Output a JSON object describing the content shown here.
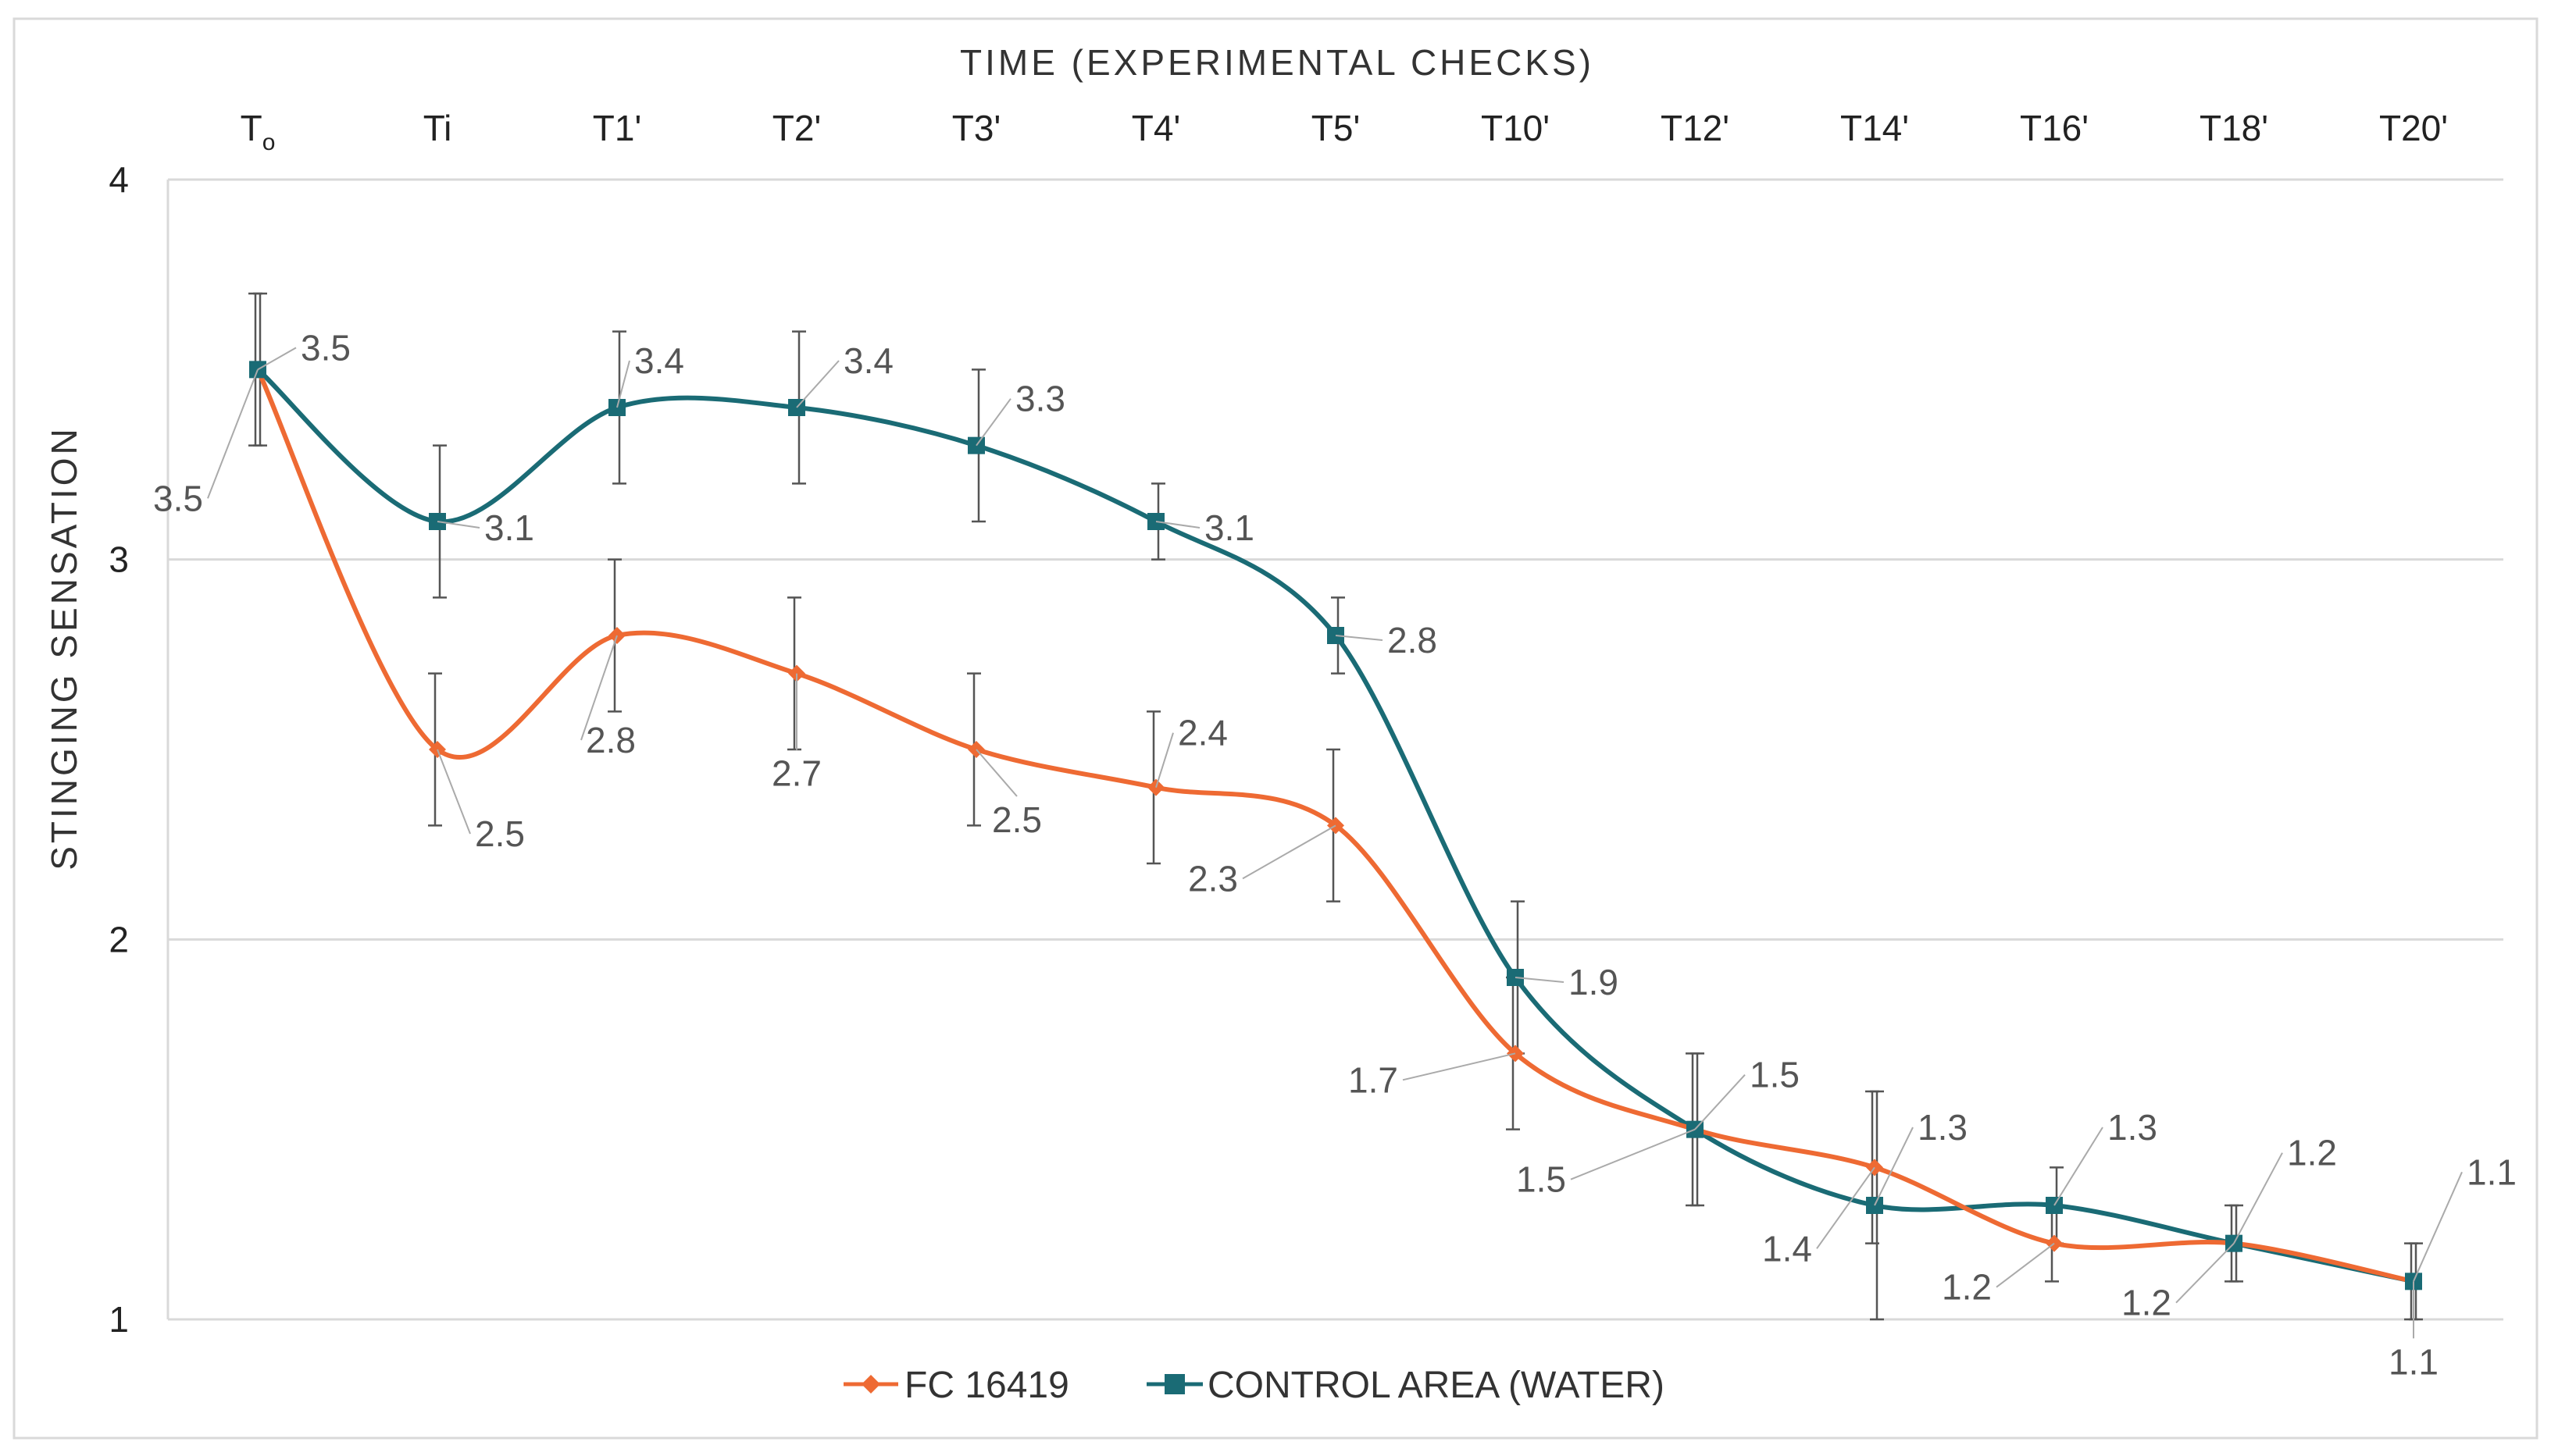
{
  "chart_data": {
    "type": "line",
    "xlabel": "TIME (EXPERIMENTAL CHECKS)",
    "ylabel": "STINGING SENSATION",
    "categories": [
      "To",
      "Ti",
      "T1'",
      "T2'",
      "T3'",
      "T4'",
      "T5'",
      "T10'",
      "T12'",
      "T14'",
      "T16'",
      "T18'",
      "T20'"
    ],
    "ylim": [
      1,
      4
    ],
    "yticks": [
      "1",
      "2",
      "3",
      "4"
    ],
    "grid": true,
    "legend_position": "bottom",
    "series": [
      {
        "name": "FC 16419",
        "color": "#ee6a33",
        "marker": "diamond",
        "values": [
          3.5,
          2.5,
          2.8,
          2.7,
          2.5,
          2.4,
          2.3,
          1.7,
          1.5,
          1.4,
          1.2,
          1.2,
          1.1
        ],
        "labels": [
          "3.5",
          "2.5",
          "2.8",
          "2.7",
          "2.5",
          "2.4",
          "2.3",
          "1.7",
          "1.5",
          "1.4",
          "1.2",
          "1.2",
          "1.1"
        ],
        "error": [
          0.2,
          0.2,
          0.2,
          0.2,
          0.2,
          0.2,
          0.2,
          0.2,
          0.2,
          0.2,
          0.1,
          0.1,
          0.1
        ]
      },
      {
        "name": "CONTROL AREA (WATER)",
        "color": "#1a6b75",
        "marker": "square",
        "values": [
          3.5,
          3.1,
          3.4,
          3.4,
          3.3,
          3.1,
          2.8,
          1.9,
          1.5,
          1.3,
          1.3,
          1.2,
          1.1
        ],
        "labels": [
          "3.5",
          "3.1",
          "3.4",
          "3.4",
          "3.3",
          "3.1",
          "2.8",
          "1.9",
          "1.5",
          "1.3",
          "1.3",
          "1.2",
          "1.1"
        ],
        "error": [
          0.2,
          0.2,
          0.2,
          0.2,
          0.2,
          0.1,
          0.1,
          0.2,
          0.2,
          0.3,
          0.1,
          0.1,
          0.1
        ]
      }
    ]
  }
}
